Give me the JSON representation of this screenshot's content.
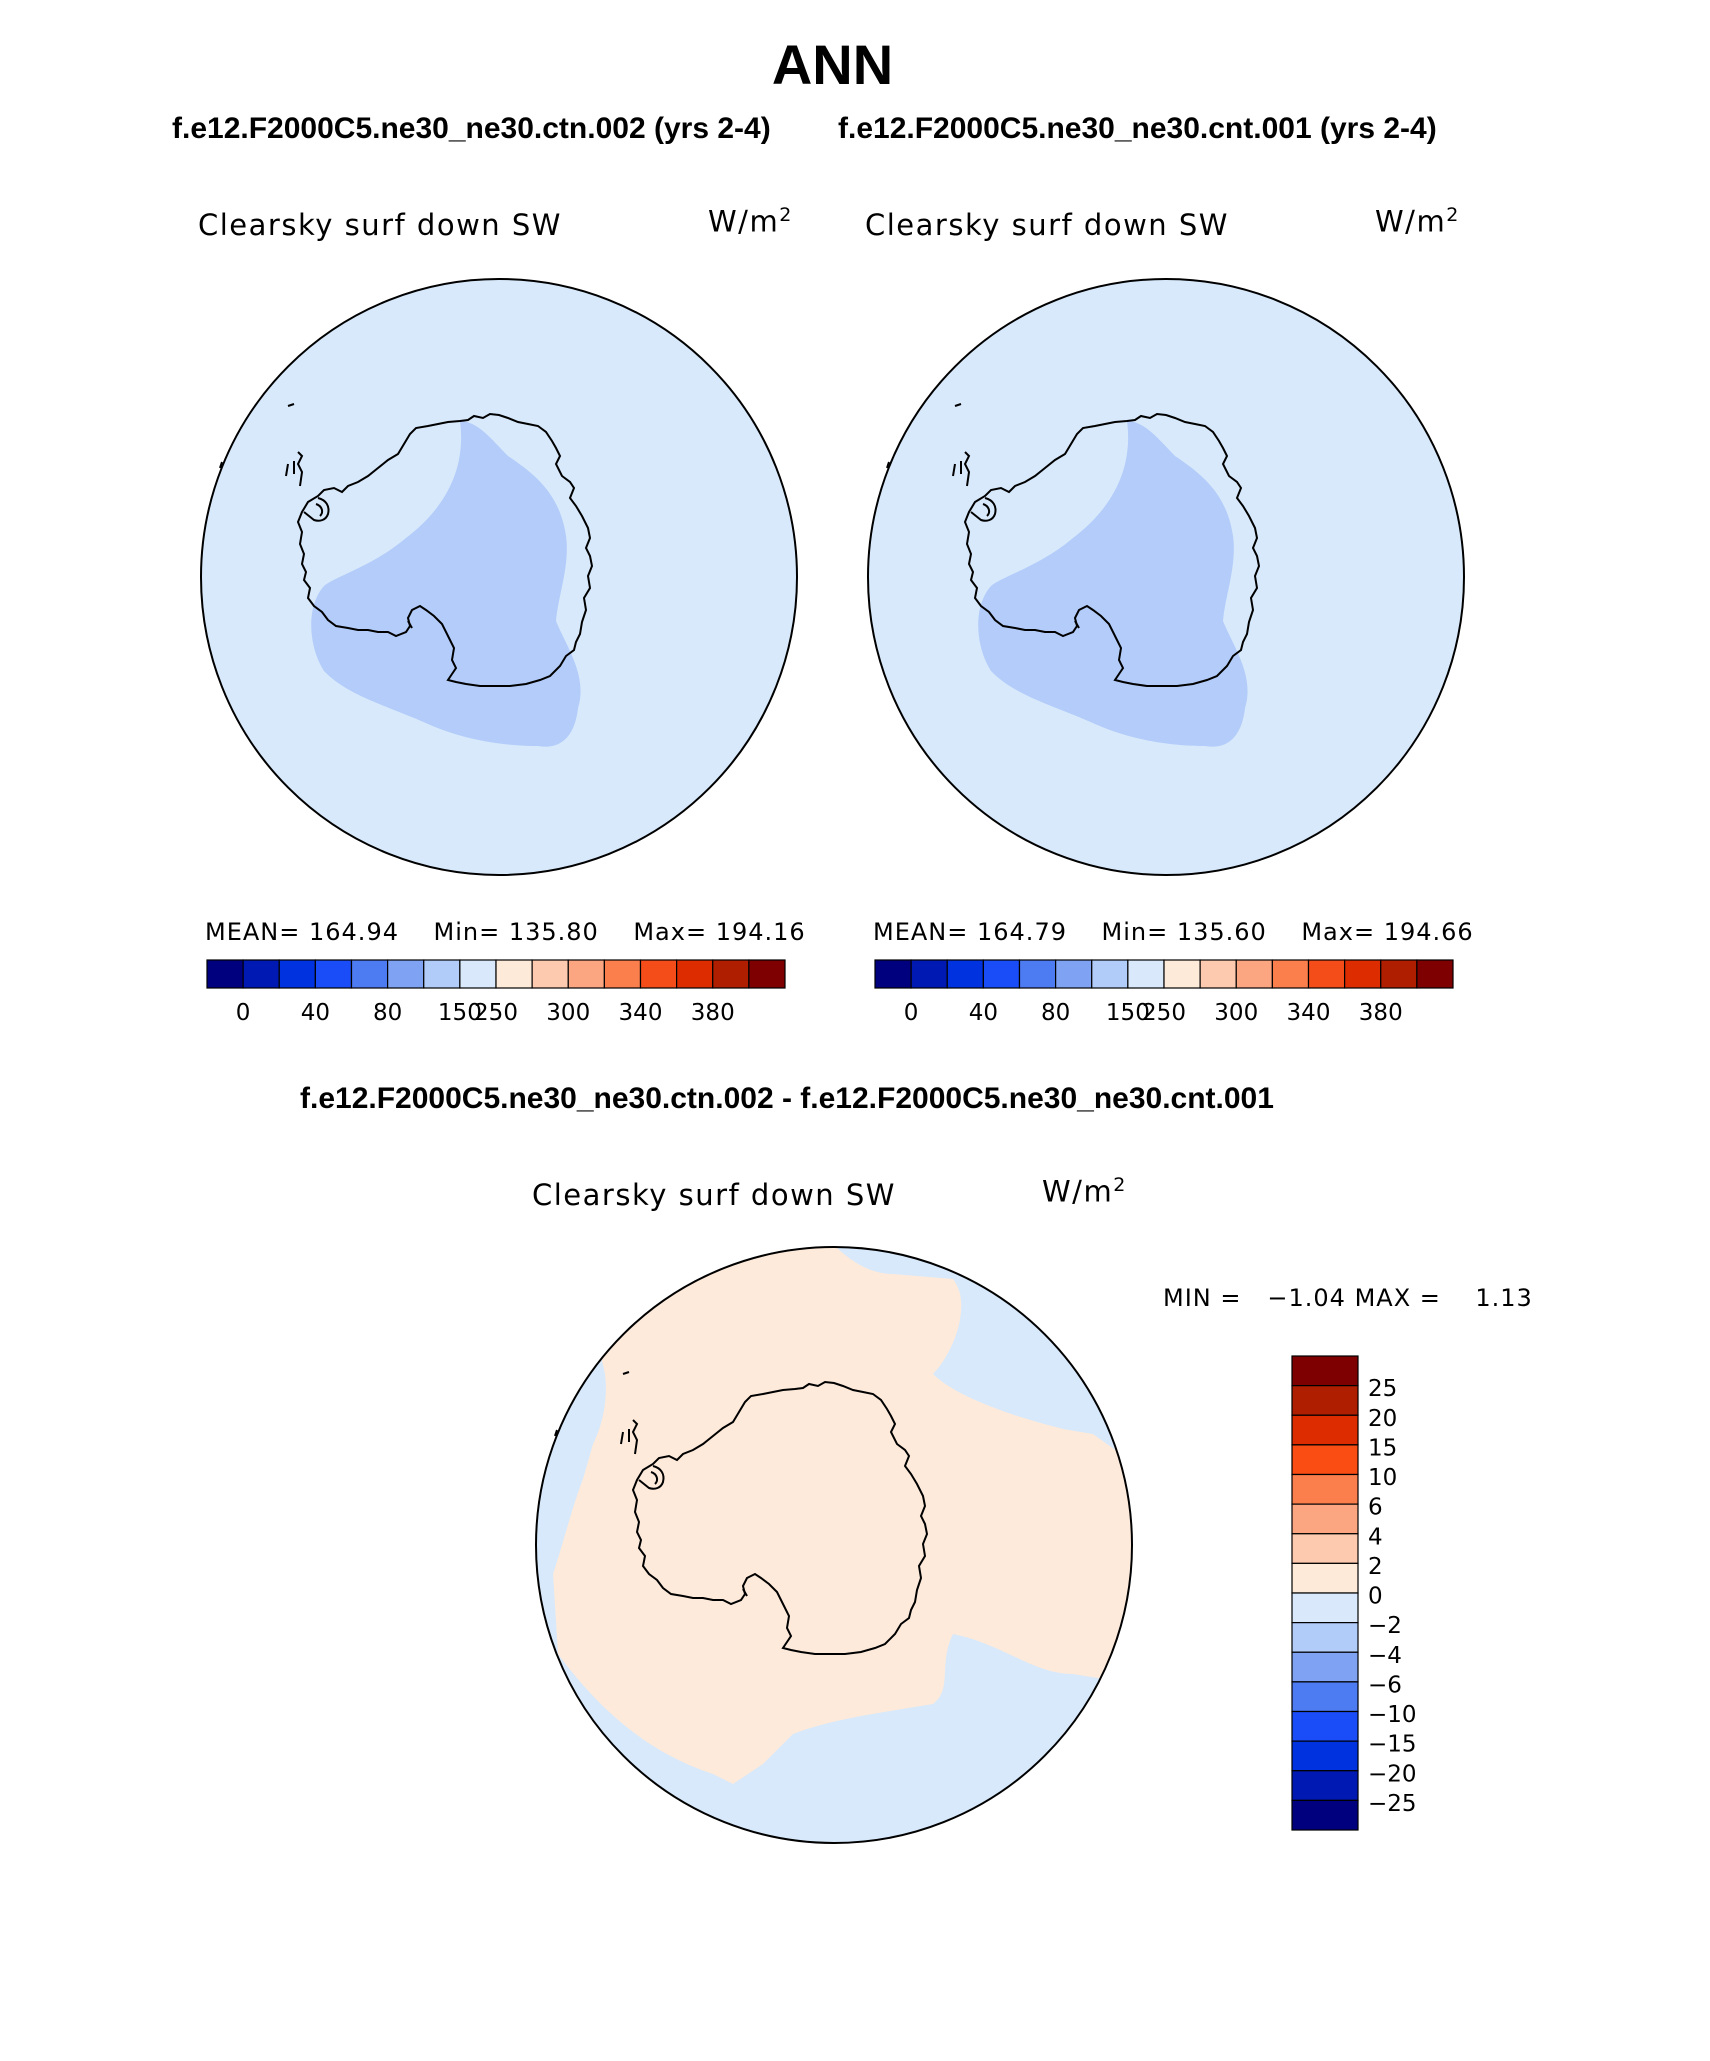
{
  "figure": {
    "season": "ANN",
    "subtitle_left": "f.e12.F2000C5.ne30_ne30.ctn.002 (yrs 2-4)",
    "subtitle_right": "f.e12.F2000C5.ne30_ne30.cnt.001 (yrs 2-4)",
    "diff_title": "f.e12.F2000C5.ne30_ne30.ctn.002 - f.e12.F2000C5.ne30_ne30.cnt.001"
  },
  "panels": [
    {
      "variable": "Clearsky surf down SW",
      "units_base": "W/m",
      "units_exp": "2",
      "mean_label": "MEAN=",
      "mean": "164.94",
      "min_label": "Min=",
      "min": "135.80",
      "max_label": "Max=",
      "max": "194.16"
    },
    {
      "variable": "Clearsky surf down SW",
      "units_base": "W/m",
      "units_exp": "2",
      "mean_label": "MEAN=",
      "mean": "164.79",
      "min_label": "Min=",
      "min": "135.60",
      "max_label": "Max=",
      "max": "194.66"
    }
  ],
  "diff_panel": {
    "variable": "Clearsky surf down SW",
    "units_base": "W/m",
    "units_exp": "2",
    "min_label": "MIN =",
    "min": "−1.04",
    "max_label": "MAX =",
    "max": "1.13"
  },
  "colorbar_abs": {
    "colors": [
      "#00007f",
      "#0019b2",
      "#0032e0",
      "#1a4cf7",
      "#4d7bf2",
      "#7fa3f2",
      "#b2ccfa",
      "#d9e9fb",
      "#feead8",
      "#fdcab0",
      "#fca681",
      "#fb7f4d",
      "#f44d1a",
      "#dc2c00",
      "#b01e00",
      "#7f0000"
    ],
    "labels": [
      "0",
      "40",
      "80",
      "150",
      "250",
      "300",
      "340",
      "380"
    ],
    "label_after_box": [
      1,
      3,
      5,
      7,
      8,
      10,
      12,
      14
    ]
  },
  "colorbar_diff": {
    "colors_top_to_bottom": [
      "#7f0000",
      "#b01e00",
      "#dc2c00",
      "#fa4d14",
      "#fb7f4d",
      "#fca681",
      "#fdcab0",
      "#feead8",
      "#d9e9fb",
      "#b2ccfa",
      "#7fa3f2",
      "#4d7bf2",
      "#1a4cf7",
      "#0032e0",
      "#0019b2",
      "#00007f"
    ],
    "labels": [
      "25",
      "20",
      "15",
      "10",
      "6",
      "4",
      "2",
      "0",
      "−2",
      "−4",
      "−6",
      "−10",
      "−15",
      "−20",
      "−25"
    ]
  },
  "colors": {
    "map_base_abs": "#d7e9fb",
    "map_low_abs": "#b3ccf9",
    "map_base_diff": "#fdeadb",
    "map_neg_diff": "#d7e9fb",
    "coast": "#000000"
  }
}
